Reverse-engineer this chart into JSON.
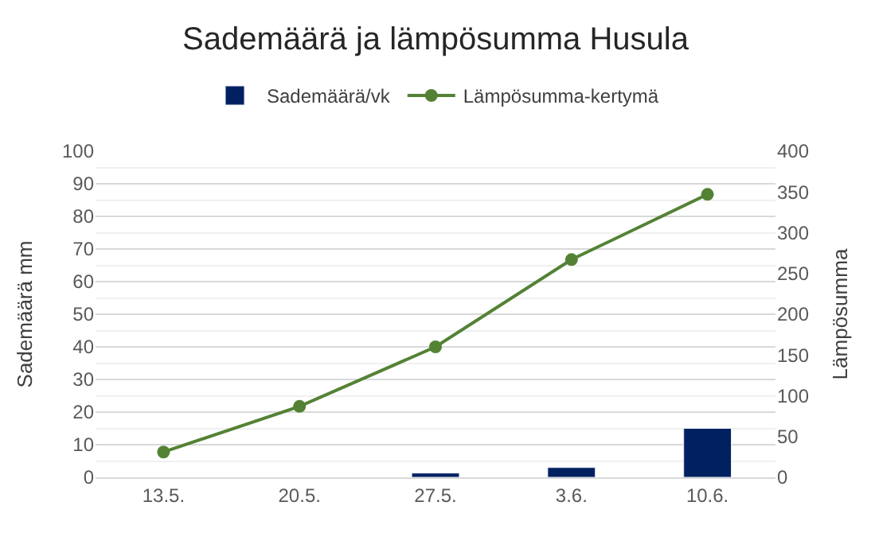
{
  "chart_data": {
    "type": "bar",
    "title": "Sademäärä ja lämpösumma Husula",
    "ylabel": "Sademäärä mm",
    "y2label": "Lämpösumma",
    "categories": [
      "13.5.",
      "20.5.",
      "27.5.",
      "3.6.",
      "10.6."
    ],
    "series": [
      {
        "name": "Sademäärä/vk",
        "color": "#002060",
        "values": [
          null,
          null,
          1.3,
          3,
          15
        ]
      },
      {
        "name": "Lämpösumma-kertymä",
        "type": "line",
        "axis": "y2",
        "color": "#548235",
        "marker": "circle",
        "values": [
          31,
          87,
          160,
          267,
          347
        ]
      }
    ],
    "ylim": [
      0,
      100
    ],
    "yticks": [
      0,
      10,
      20,
      30,
      40,
      50,
      60,
      70,
      80,
      90,
      100
    ],
    "y2lim": [
      0,
      400
    ],
    "y2ticks": [
      0,
      50,
      100,
      150,
      200,
      250,
      300,
      350,
      400
    ],
    "grid": "y",
    "legend": "top"
  }
}
